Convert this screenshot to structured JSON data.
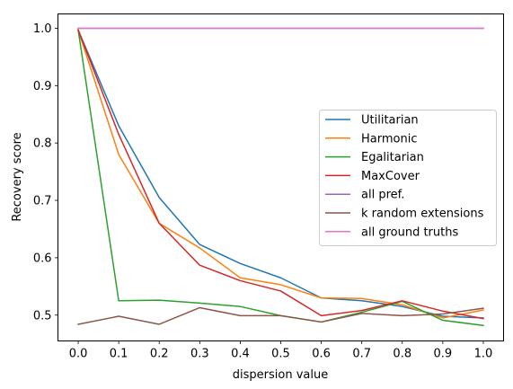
{
  "chart_data": {
    "type": "line",
    "title": "",
    "xlabel": "dispersion value",
    "ylabel": "Recovery score",
    "x": [
      0.0,
      0.1,
      0.2,
      0.3,
      0.4,
      0.5,
      0.6,
      0.7,
      0.8,
      0.9,
      1.0
    ],
    "x_tick_labels": [
      "0.0",
      "0.1",
      "0.2",
      "0.3",
      "0.4",
      "0.5",
      "0.6",
      "0.7",
      "0.8",
      "0.9",
      "1.0"
    ],
    "y_ticks": [
      0.5,
      0.6,
      0.7,
      0.8,
      0.9,
      1.0
    ],
    "y_tick_labels": [
      "0.5",
      "0.6",
      "0.7",
      "0.8",
      "0.9",
      "1.0"
    ],
    "xlim": [
      -0.05,
      1.05
    ],
    "ylim": [
      0.455,
      1.025
    ],
    "grid": false,
    "legend_position": "center-right",
    "series": [
      {
        "name": "Utilitarian",
        "color": "#1f77b4",
        "values": [
          0.997,
          0.83,
          0.705,
          0.623,
          0.59,
          0.565,
          0.53,
          0.525,
          0.515,
          0.498,
          0.495
        ]
      },
      {
        "name": "Harmonic",
        "color": "#ff7f0e",
        "values": [
          0.997,
          0.78,
          0.66,
          0.617,
          0.565,
          0.553,
          0.53,
          0.529,
          0.518,
          0.495,
          0.509
        ]
      },
      {
        "name": "Egalitarian",
        "color": "#2ca02c",
        "values": [
          0.997,
          0.525,
          0.526,
          0.521,
          0.515,
          0.499,
          0.488,
          0.505,
          0.524,
          0.491,
          0.482
        ]
      },
      {
        "name": "MaxCover",
        "color": "#d62728",
        "values": [
          0.997,
          0.815,
          0.66,
          0.587,
          0.56,
          0.542,
          0.499,
          0.508,
          0.525,
          0.507,
          0.494
        ]
      },
      {
        "name": "all pref.",
        "color": "#9467bd",
        "values": [
          1.0,
          1.0,
          1.0,
          1.0,
          1.0,
          1.0,
          1.0,
          1.0,
          1.0,
          1.0,
          1.0
        ]
      },
      {
        "name": "k random extensions",
        "color": "#8c564b",
        "values": [
          0.484,
          0.498,
          0.484,
          0.513,
          0.499,
          0.499,
          0.488,
          0.503,
          0.499,
          0.502,
          0.512
        ]
      },
      {
        "name": "all ground truths",
        "color": "#e377c2",
        "values": [
          1.0,
          1.0,
          1.0,
          1.0,
          1.0,
          1.0,
          1.0,
          1.0,
          1.0,
          1.0,
          1.0
        ]
      }
    ]
  }
}
